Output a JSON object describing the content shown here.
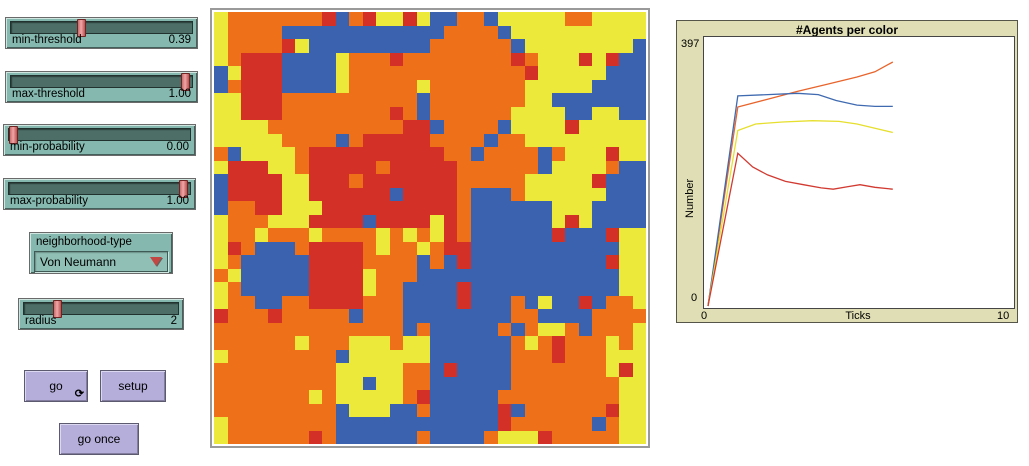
{
  "sliders": [
    {
      "label": "min-threshold",
      "value": "0.39",
      "handle_pct": 38
    },
    {
      "label": "max-threshold",
      "value": "1.00",
      "handle_pct": 98
    },
    {
      "label": "min-probability",
      "value": "0.00",
      "handle_pct": 0
    },
    {
      "label": "max-probability",
      "value": "1.00",
      "handle_pct": 98
    },
    {
      "label": "radius",
      "value": "2",
      "handle_pct": 20
    }
  ],
  "chooser": {
    "label": "neighborhood-type",
    "selected": "Von Neumann"
  },
  "buttons": {
    "go": "go",
    "setup": "setup",
    "go_once": "go once",
    "forever_icon": "⟳"
  },
  "world": {
    "palette": {
      "Y": "#ece93b",
      "O": "#ee7119",
      "R": "#d33128",
      "B": "#3a62ae"
    },
    "rows": [
      "YOOOOOOORBORYYRYBBOOBYYYYYOOYYYY",
      "YOOOOBBBBBBBBBBBBOOOOBYYYYYYYYYY",
      "YOOOORYBBBBBBBBBOOOOOOBYYYYYYYYB",
      "YORRRBBBBYOOOROOOOOOOOROYYYRYRBB",
      "BYRRRBBBBYOOOOOOOOOOOOORYYYYYBBB",
      "BORRRBBBBYOOOOOYOOOOOOOYYYYYBBBB",
      "YYRRROOOOOOOOOOBOOOOOOOYYBBBBBBB",
      "YYRRROOOOOOOOROBOOOOOOYYYYBBYYBB",
      "YYYYOOOOOOOOOORRBOOOOBYYYYRYYYYY",
      "YYYYYOOOOBORRRRROOOOBOOYYYYYYYYY",
      "OBYYYYORRRRRRRRRROOBOOOOBOYYYRYY",
      "YRRRYYORRRRRORRRRROOOOOOBYYYYOBB",
      "BRRRRYYRRRORRRRRRROOOOOYYYYYRBBB",
      "BRRRRYYRRRRRRBRRRROBBBOYYYYYYBBB",
      "BOORRYYYRRRRRRRRRROBBBBBBYYYBBBB",
      "YOOOYYYRRRRBRRRRYROBBBBBBYRYBBBB",
      "YOOYOOOYOOOOYOYOYROBBBBBBRBBBRYY",
      "YROBBBORRRROYOOYORRBBBBBBBBBBBYY",
      "YOBBBBBRRRROOOOBOBRBBBBBBBBBBRYY",
      "OYBBBBBRRRRYOOOBBBBBBBBBBBBBBBYY",
      "YOBBBBBRRRRYOOBBBBRBBBBBBBBBBBYY",
      "YOOBBOORRRROOOBBBBRBBBOBYBBRBOOY",
      "ROOOROOOOOBOOOBBBBBBBBOOBBBBOOOO",
      "OOOOOOOOOOOOOOBOBBBBBOBOYYOBOOOY",
      "OOOOOOYOOOYYYOYYBBBBBBOYOROOOYOY",
      "YOOOOOOOOBYYYYYYBBBBBBOOOROOOYYY",
      "OOOOOOOOOYYYYYOOBRBBBBOOOOOOOYRY",
      "OOOOOOOOOYYBYYOOBBBBBBOOOOOOOOYY",
      "OOOOOOOYOYYYYYORBBBBBOOOOOOOOOYY",
      "OOOOOOOOOBYYYBBOBBBBBRBOOOOOORYY",
      "YOOOOOOOOBBBBBBBBBBBBROOOOOOBOYY",
      "YOOOOOOROBBBBBBOBBBBOYYYROOOOOYY"
    ]
  },
  "chart_data": {
    "type": "line",
    "title": "#Agents per color",
    "xlabel": "Ticks",
    "ylabel": "Number",
    "xlim": [
      0,
      10
    ],
    "ylim": [
      0,
      397
    ],
    "y_max_label": "397",
    "y_min_label": "0",
    "x_min_label": "0",
    "x_max_label": "10",
    "grid": false,
    "legend_position": "none",
    "series": [
      {
        "name": "orange",
        "color": "#e8642c",
        "points": [
          [
            0,
            0
          ],
          [
            1,
            305
          ],
          [
            2,
            317
          ],
          [
            3,
            329
          ],
          [
            4,
            340
          ],
          [
            5,
            351
          ],
          [
            5.6,
            359
          ],
          [
            6.2,
            374
          ]
        ]
      },
      {
        "name": "blue",
        "color": "#3f6ab0",
        "points": [
          [
            0,
            0
          ],
          [
            1,
            322
          ],
          [
            2,
            324
          ],
          [
            3,
            326
          ],
          [
            3.7,
            324
          ],
          [
            4.3,
            315
          ],
          [
            5,
            308
          ],
          [
            5.6,
            306
          ],
          [
            6.2,
            306
          ]
        ]
      },
      {
        "name": "yellow",
        "color": "#e6df2e",
        "points": [
          [
            0,
            0
          ],
          [
            1,
            269
          ],
          [
            1.6,
            279
          ],
          [
            2.5,
            282
          ],
          [
            3.5,
            284
          ],
          [
            4.4,
            283
          ],
          [
            5,
            279
          ],
          [
            6.2,
            266
          ]
        ]
      },
      {
        "name": "red",
        "color": "#d13a31",
        "points": [
          [
            0,
            0
          ],
          [
            1,
            234
          ],
          [
            1.5,
            213
          ],
          [
            2,
            201
          ],
          [
            2.6,
            191
          ],
          [
            3.2,
            186
          ],
          [
            3.8,
            181
          ],
          [
            4.2,
            179
          ],
          [
            4.7,
            183
          ],
          [
            5.1,
            186
          ],
          [
            5.6,
            182
          ],
          [
            6.2,
            179
          ]
        ]
      }
    ]
  }
}
